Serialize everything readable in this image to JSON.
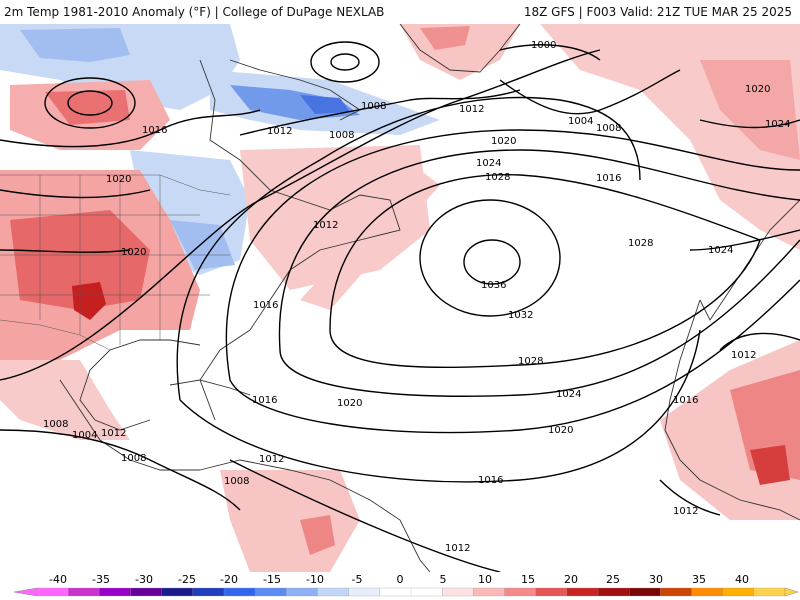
{
  "header": {
    "title_left": "2m Temp 1981-2010 Anomaly (°F) | College of DuPage NEXLAB",
    "title_right": "18Z GFS | F003 Valid: 21Z TUE MAR 25 2025"
  },
  "isobars": [
    {
      "value": "1000"
    },
    {
      "value": "1004"
    },
    {
      "value": "1008"
    },
    {
      "value": "1012"
    },
    {
      "value": "1016"
    },
    {
      "value": "1020"
    },
    {
      "value": "1024"
    },
    {
      "value": "1028"
    },
    {
      "value": "1032"
    },
    {
      "value": "1036"
    }
  ],
  "isobar_labels": [
    {
      "text": "1000"
    },
    {
      "text": "1004"
    },
    {
      "text": "1008"
    },
    {
      "text": "1016"
    },
    {
      "text": "1020"
    },
    {
      "text": "1024"
    },
    {
      "text": "1016"
    },
    {
      "text": "1020"
    },
    {
      "text": "1020"
    },
    {
      "text": "1008"
    },
    {
      "text": "1012"
    },
    {
      "text": "1008"
    },
    {
      "text": "1012"
    },
    {
      "text": "1020"
    },
    {
      "text": "1024"
    },
    {
      "text": "1028"
    },
    {
      "text": "1012"
    },
    {
      "text": "1016"
    },
    {
      "text": "1036"
    },
    {
      "text": "1032"
    },
    {
      "text": "1028"
    },
    {
      "text": "1024"
    },
    {
      "text": "1020"
    },
    {
      "text": "1016"
    },
    {
      "text": "1028"
    },
    {
      "text": "1024"
    },
    {
      "text": "1016"
    },
    {
      "text": "1020"
    },
    {
      "text": "1016"
    },
    {
      "text": "1008"
    },
    {
      "text": "1004"
    },
    {
      "text": "1012"
    },
    {
      "text": "1008"
    },
    {
      "text": "1012"
    },
    {
      "text": "1008"
    },
    {
      "text": "1012"
    },
    {
      "text": "1012"
    },
    {
      "text": "1012"
    }
  ],
  "colorbar": {
    "ticks": [
      "-40",
      "-35",
      "-30",
      "-25",
      "-20",
      "-15",
      "-10",
      "-5",
      "0",
      "5",
      "10",
      "15",
      "20",
      "25",
      "30",
      "35",
      "40"
    ],
    "colors": [
      "#ff66ff",
      "#cc33cc",
      "#9900cc",
      "#660099",
      "#1a1a8c",
      "#1f3fbf",
      "#3366ee",
      "#5b8bf5",
      "#8fb0f5",
      "#c2d6f7",
      "#e6eefb",
      "#ffffff",
      "#ffffff",
      "#fde0e0",
      "#fbb8b8",
      "#f48a8a",
      "#e85555",
      "#cc2222",
      "#a10f0f",
      "#7a0505",
      "#cc4400",
      "#ff8c00",
      "#ffb000",
      "#ffd24d"
    ]
  }
}
